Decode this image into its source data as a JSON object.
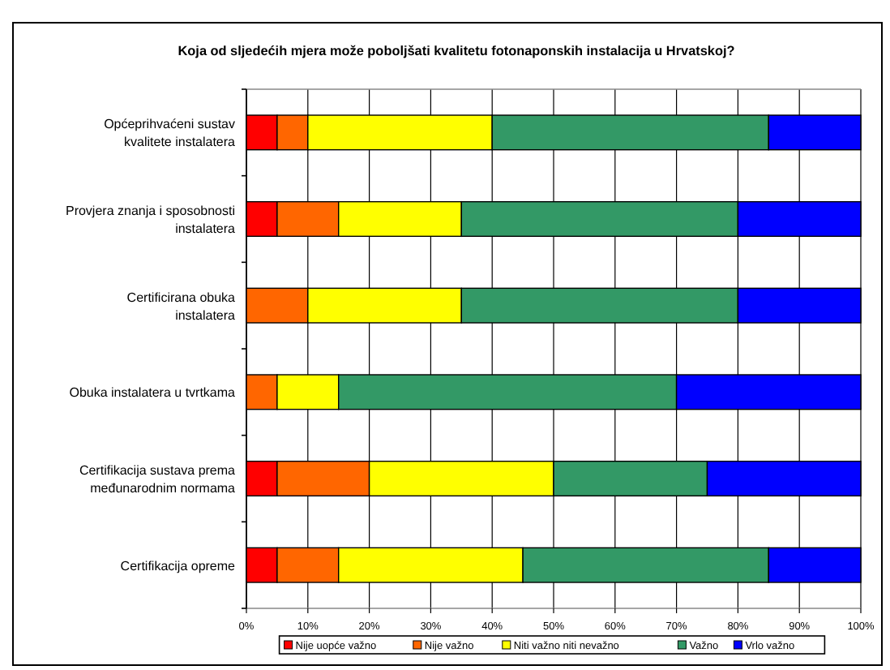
{
  "chart_data": {
    "type": "bar",
    "orientation": "horizontal",
    "stacked": true,
    "title": "Koja od sljedećih mjera može poboljšati kvalitetu fotonaponskih instalacija u Hrvatskoj?",
    "categories": [
      "Općeprihvaćeni sustav kvalitete instalatera",
      "Provjera znanja i sposobnosti instalatera",
      "Certificirana obuka instalatera",
      "Obuka instalatera u tvrtkama",
      "Certifikacija sustava prema međunarodnim normama",
      "Certifikacija opreme"
    ],
    "series": [
      {
        "name": "Nije uopće važno",
        "color": "#ff0000",
        "values": [
          5,
          5,
          0,
          0,
          5,
          5
        ]
      },
      {
        "name": "Nije važno",
        "color": "#ff6600",
        "values": [
          5,
          10,
          10,
          5,
          15,
          10
        ]
      },
      {
        "name": "Niti važno niti nevažno",
        "color": "#ffff00",
        "values": [
          30,
          20,
          25,
          10,
          30,
          30
        ]
      },
      {
        "name": "Važno",
        "color": "#339966",
        "values": [
          45,
          45,
          45,
          55,
          25,
          40
        ]
      },
      {
        "name": "Vrlo važno",
        "color": "#0000ff",
        "values": [
          15,
          20,
          20,
          30,
          25,
          15
        ]
      }
    ],
    "xlim": [
      0,
      100
    ],
    "xticks": [
      {
        "value": 0,
        "label": "0%"
      },
      {
        "value": 10,
        "label": "10%"
      },
      {
        "value": 20,
        "label": "20%"
      },
      {
        "value": 30,
        "label": "30%"
      },
      {
        "value": 40,
        "label": "40%"
      },
      {
        "value": 50,
        "label": "50%"
      },
      {
        "value": 60,
        "label": "60%"
      },
      {
        "value": 70,
        "label": "70%"
      },
      {
        "value": 80,
        "label": "80%"
      },
      {
        "value": 90,
        "label": "90%"
      },
      {
        "value": 100,
        "label": "100%"
      }
    ],
    "grid": "x",
    "legend": "bottom"
  }
}
